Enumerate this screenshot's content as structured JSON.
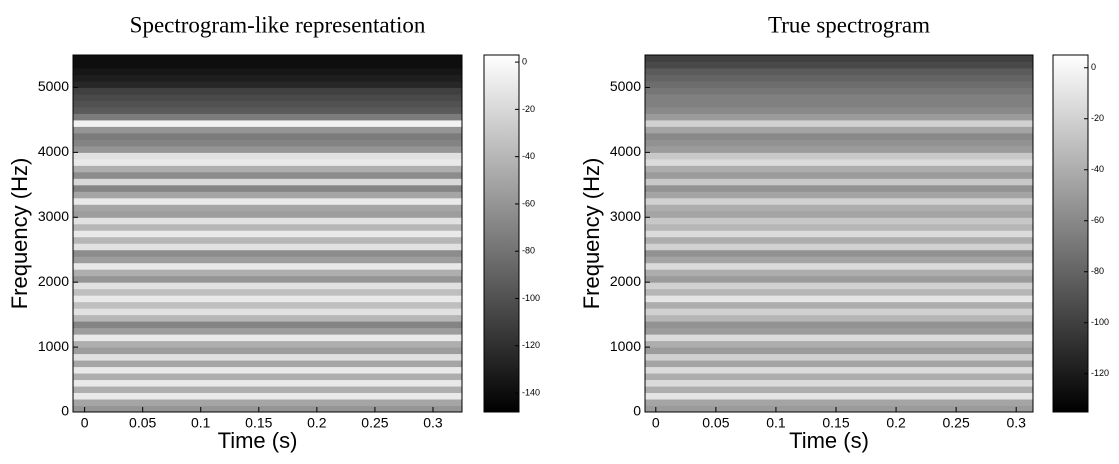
{
  "chart_data": [
    {
      "type": "heatmap",
      "title": "Spectrogram-like representation",
      "xlabel": "Time (s)",
      "ylabel": "Frequency (Hz)",
      "xlim": [
        -0.01,
        0.325
      ],
      "xticks": [
        0,
        0.05,
        0.1,
        0.15,
        0.2,
        0.25,
        0.3
      ],
      "ylim": [
        0,
        5500
      ],
      "yticks": [
        0,
        1000,
        2000,
        3000,
        4000,
        5000
      ],
      "clim": [
        -148,
        3
      ],
      "cticks": [
        0,
        -20,
        -40,
        -60,
        -80,
        -100,
        -120,
        -140
      ],
      "y": [
        0,
        100,
        200,
        300,
        400,
        500,
        600,
        700,
        800,
        900,
        1000,
        1100,
        1200,
        1300,
        1400,
        1500,
        1600,
        1700,
        1800,
        1900,
        2000,
        2100,
        2200,
        2300,
        2400,
        2500,
        2600,
        2700,
        2800,
        2900,
        3000,
        3100,
        3200,
        3300,
        3400,
        3500,
        3600,
        3700,
        3800,
        3900,
        4000,
        4100,
        4200,
        4300,
        4400,
        4500,
        4600,
        4700,
        4800,
        4900,
        5000,
        5100,
        5200,
        5300,
        5400
      ],
      "values": [
        -60,
        -50,
        -10,
        -45,
        -10,
        -45,
        -10,
        -50,
        -15,
        -55,
        -45,
        -10,
        -55,
        -70,
        -40,
        -15,
        -35,
        -10,
        -35,
        -15,
        -60,
        -45,
        -10,
        -55,
        -65,
        -15,
        -40,
        -10,
        -40,
        -15,
        -55,
        -50,
        -10,
        -50,
        -70,
        -20,
        -65,
        -45,
        -10,
        -15,
        -60,
        -70,
        -75,
        -60,
        -5,
        -75,
        -95,
        -100,
        -105,
        -110,
        -125,
        -130,
        -135,
        -140,
        -140
      ]
    },
    {
      "type": "heatmap",
      "title": "True spectrogram",
      "xlabel": "Time (s)",
      "ylabel": "Frequency (Hz)",
      "xlim": [
        -0.009,
        0.314
      ],
      "xticks": [
        0,
        0.05,
        0.1,
        0.15,
        0.2,
        0.25,
        0.3
      ],
      "ylim": [
        0,
        5500
      ],
      "yticks": [
        0,
        1000,
        2000,
        3000,
        4000,
        5000
      ],
      "clim": [
        -135,
        5
      ],
      "cticks": [
        0,
        -20,
        -40,
        -60,
        -80,
        -100,
        -120
      ],
      "y": [
        0,
        100,
        200,
        300,
        400,
        500,
        600,
        700,
        800,
        900,
        1000,
        1100,
        1200,
        1300,
        1400,
        1500,
        1600,
        1700,
        1800,
        1900,
        2000,
        2100,
        2200,
        2300,
        2400,
        2500,
        2600,
        2700,
        2800,
        2900,
        3000,
        3100,
        3200,
        3300,
        3400,
        3500,
        3600,
        3700,
        3800,
        3900,
        4000,
        4100,
        4200,
        4300,
        4400,
        4500,
        4600,
        4700,
        4800,
        4900,
        5000,
        5100,
        5200,
        5300,
        5400
      ],
      "values": [
        -50,
        -45,
        -10,
        -40,
        -15,
        -40,
        -15,
        -45,
        -20,
        -50,
        -40,
        -15,
        -50,
        -55,
        -35,
        -20,
        -40,
        -10,
        -35,
        -20,
        -50,
        -40,
        -15,
        -45,
        -55,
        -20,
        -40,
        -15,
        -35,
        -25,
        -45,
        -40,
        -20,
        -45,
        -55,
        -25,
        -50,
        -40,
        -15,
        -25,
        -50,
        -55,
        -60,
        -45,
        -20,
        -50,
        -60,
        -65,
        -65,
        -70,
        -75,
        -80,
        -85,
        -95,
        -100
      ]
    }
  ]
}
